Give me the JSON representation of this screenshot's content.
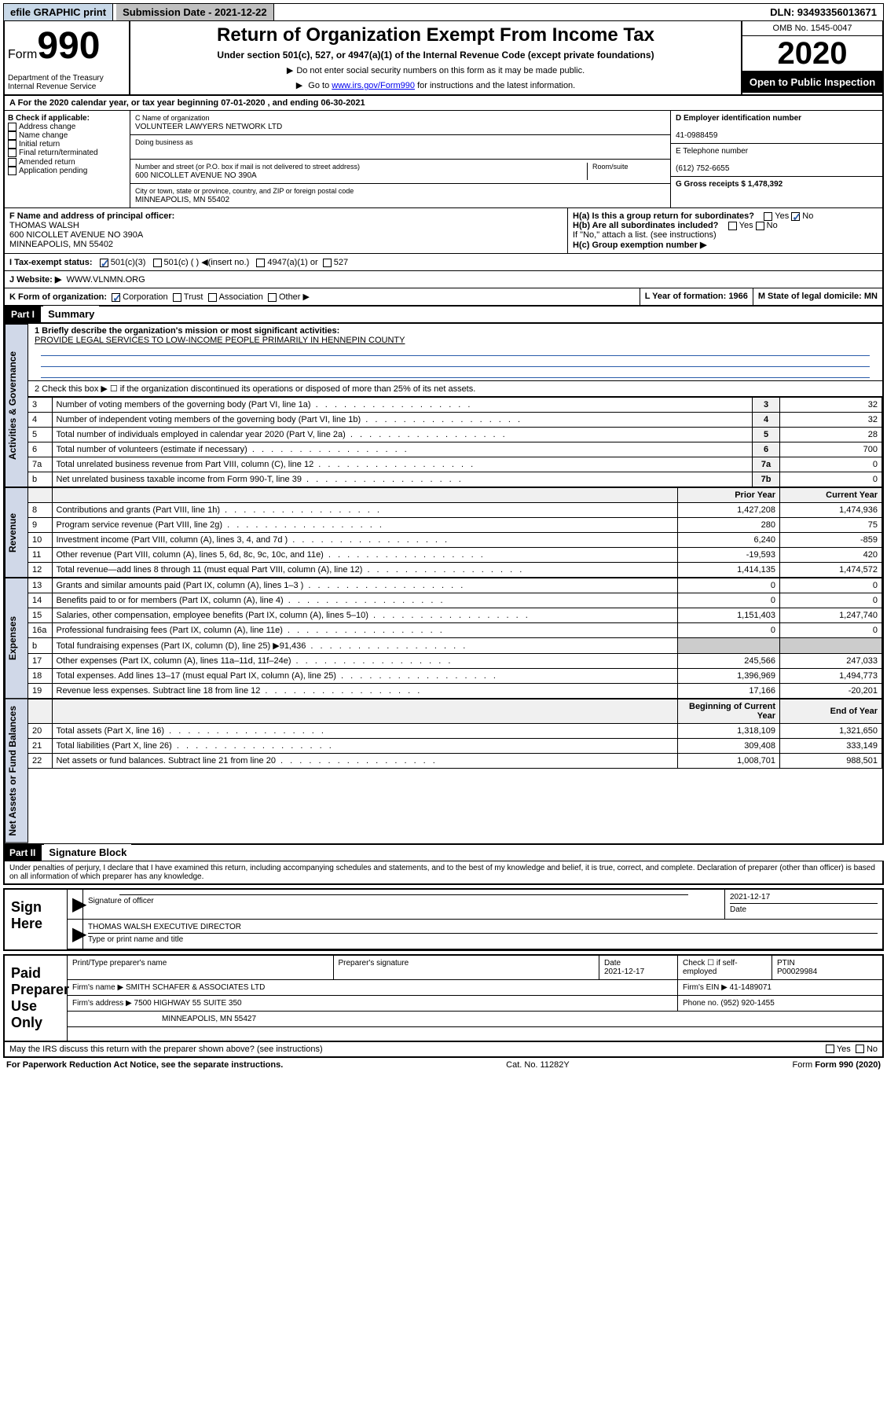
{
  "top_bar": {
    "efile": "efile GRAPHIC print",
    "submission": "Submission Date - 2021-12-22",
    "dln": "DLN: 93493356013671"
  },
  "header": {
    "form_label": "Form",
    "form_num": "990",
    "dept": "Department of the Treasury\nInternal Revenue Service",
    "title": "Return of Organization Exempt From Income Tax",
    "subtitle": "Under section 501(c), 527, or 4947(a)(1) of the Internal Revenue Code (except private foundations)",
    "note1": "Do not enter social security numbers on this form as it may be made public.",
    "note2_pre": "Go to ",
    "note2_link": "www.irs.gov/Form990",
    "note2_post": " for instructions and the latest information.",
    "omb": "OMB No. 1545-0047",
    "year": "2020",
    "open": "Open to Public Inspection"
  },
  "line_a": "A For the 2020 calendar year, or tax year beginning 07-01-2020   , and ending 06-30-2021",
  "col_b": {
    "label": "B Check if applicable:",
    "items": [
      "Address change",
      "Name change",
      "Initial return",
      "Final return/terminated",
      "Amended return",
      "Application pending"
    ]
  },
  "col_c": {
    "name_label": "C Name of organization",
    "name": "VOLUNTEER LAWYERS NETWORK LTD",
    "dba_label": "Doing business as",
    "street_label": "Number and street (or P.O. box if mail is not delivered to street address)",
    "room_label": "Room/suite",
    "street": "600 NICOLLET AVENUE NO 390A",
    "city_label": "City or town, state or province, country, and ZIP or foreign postal code",
    "city": "MINNEAPOLIS, MN  55402"
  },
  "col_d": {
    "ein_label": "D Employer identification number",
    "ein": "41-0988459",
    "phone_label": "E Telephone number",
    "phone": "(612) 752-6655",
    "gross_label": "G Gross receipts $ 1,478,392"
  },
  "row_f": {
    "label": "F  Name and address of principal officer:",
    "name": "THOMAS WALSH",
    "addr1": "600 NICOLLET AVENUE NO 390A",
    "addr2": "MINNEAPOLIS, MN  55402"
  },
  "row_h": {
    "ha": "H(a)  Is this a group return for subordinates?",
    "hb": "H(b)  Are all subordinates included?",
    "hb_note": "If \"No,\" attach a list. (see instructions)",
    "hc": "H(c)  Group exemption number ▶"
  },
  "row_i": {
    "label": "I  Tax-exempt status:",
    "opts": [
      "501(c)(3)",
      "501(c) (  ) ◀(insert no.)",
      "4947(a)(1) or",
      "527"
    ]
  },
  "row_j": {
    "label": "J  Website: ▶",
    "val": "WWW.VLNMN.ORG"
  },
  "row_k": {
    "label": "K Form of organization:",
    "opts": [
      "Corporation",
      "Trust",
      "Association",
      "Other ▶"
    ],
    "l": "L Year of formation: 1966",
    "m": "M State of legal domicile: MN"
  },
  "part1": {
    "tag": "Part I",
    "title": "Summary",
    "q1": "1  Briefly describe the organization's mission or most significant activities:",
    "q1_ans": "PROVIDE LEGAL SERVICES TO LOW-INCOME PEOPLE PRIMARILY IN HENNEPIN COUNTY",
    "q2": "2   Check this box ▶ ☐  if the organization discontinued its operations or disposed of more than 25% of its net assets."
  },
  "gov_rows": [
    {
      "n": "3",
      "desc": "Number of voting members of the governing body (Part VI, line 1a)",
      "box": "3",
      "val": "32"
    },
    {
      "n": "4",
      "desc": "Number of independent voting members of the governing body (Part VI, line 1b)",
      "box": "4",
      "val": "32"
    },
    {
      "n": "5",
      "desc": "Total number of individuals employed in calendar year 2020 (Part V, line 2a)",
      "box": "5",
      "val": "28"
    },
    {
      "n": "6",
      "desc": "Total number of volunteers (estimate if necessary)",
      "box": "6",
      "val": "700"
    },
    {
      "n": "7a",
      "desc": "Total unrelated business revenue from Part VIII, column (C), line 12",
      "box": "7a",
      "val": "0"
    },
    {
      "n": "b",
      "desc": "Net unrelated business taxable income from Form 990-T, line 39",
      "box": "7b",
      "val": "0"
    }
  ],
  "rev_head": {
    "prior": "Prior Year",
    "current": "Current Year"
  },
  "rev_rows": [
    {
      "n": "8",
      "desc": "Contributions and grants (Part VIII, line 1h)",
      "p": "1,427,208",
      "c": "1,474,936"
    },
    {
      "n": "9",
      "desc": "Program service revenue (Part VIII, line 2g)",
      "p": "280",
      "c": "75"
    },
    {
      "n": "10",
      "desc": "Investment income (Part VIII, column (A), lines 3, 4, and 7d )",
      "p": "6,240",
      "c": "-859"
    },
    {
      "n": "11",
      "desc": "Other revenue (Part VIII, column (A), lines 5, 6d, 8c, 9c, 10c, and 11e)",
      "p": "-19,593",
      "c": "420"
    },
    {
      "n": "12",
      "desc": "Total revenue—add lines 8 through 11 (must equal Part VIII, column (A), line 12)",
      "p": "1,414,135",
      "c": "1,474,572"
    }
  ],
  "exp_rows": [
    {
      "n": "13",
      "desc": "Grants and similar amounts paid (Part IX, column (A), lines 1–3 )",
      "p": "0",
      "c": "0"
    },
    {
      "n": "14",
      "desc": "Benefits paid to or for members (Part IX, column (A), line 4)",
      "p": "0",
      "c": "0"
    },
    {
      "n": "15",
      "desc": "Salaries, other compensation, employee benefits (Part IX, column (A), lines 5–10)",
      "p": "1,151,403",
      "c": "1,247,740"
    },
    {
      "n": "16a",
      "desc": "Professional fundraising fees (Part IX, column (A), line 11e)",
      "p": "0",
      "c": "0"
    },
    {
      "n": "b",
      "desc": "Total fundraising expenses (Part IX, column (D), line 25) ▶91,436",
      "p": "",
      "c": ""
    },
    {
      "n": "17",
      "desc": "Other expenses (Part IX, column (A), lines 11a–11d, 11f–24e)",
      "p": "245,566",
      "c": "247,033"
    },
    {
      "n": "18",
      "desc": "Total expenses. Add lines 13–17 (must equal Part IX, column (A), line 25)",
      "p": "1,396,969",
      "c": "1,494,773"
    },
    {
      "n": "19",
      "desc": "Revenue less expenses. Subtract line 18 from line 12",
      "p": "17,166",
      "c": "-20,201"
    }
  ],
  "net_head": {
    "begin": "Beginning of Current Year",
    "end": "End of Year"
  },
  "net_rows": [
    {
      "n": "20",
      "desc": "Total assets (Part X, line 16)",
      "p": "1,318,109",
      "c": "1,321,650"
    },
    {
      "n": "21",
      "desc": "Total liabilities (Part X, line 26)",
      "p": "309,408",
      "c": "333,149"
    },
    {
      "n": "22",
      "desc": "Net assets or fund balances. Subtract line 21 from line 20",
      "p": "1,008,701",
      "c": "988,501"
    }
  ],
  "part2": {
    "tag": "Part II",
    "title": "Signature Block"
  },
  "sig_decl": "Under penalties of perjury, I declare that I have examined this return, including accompanying schedules and statements, and to the best of my knowledge and belief, it is true, correct, and complete. Declaration of preparer (other than officer) is based on all information of which preparer has any knowledge.",
  "sign_here": {
    "label": "Sign Here",
    "sig_of": "Signature of officer",
    "date": "2021-12-17",
    "date_lbl": "Date",
    "name": "THOMAS WALSH  EXECUTIVE DIRECTOR",
    "name_lbl": "Type or print name and title"
  },
  "paid": {
    "label": "Paid Preparer Use Only",
    "r1": {
      "c1": "Print/Type preparer's name",
      "c2": "Preparer's signature",
      "c3": "Date\n2021-12-17",
      "c4": "Check ☐  if self-employed",
      "c5": "PTIN\nP00029984"
    },
    "r2": {
      "c1": "Firm's name    ▶ SMITH SCHAFER & ASSOCIATES LTD",
      "c2": "Firm's EIN ▶ 41-1489071"
    },
    "r3": {
      "c1": "Firm's address ▶ 7500 HIGHWAY 55 SUITE 350",
      "c2": "Phone no. (952) 920-1455"
    },
    "r4": "MINNEAPOLIS, MN  55427"
  },
  "discuss": "May the IRS discuss this return with the preparer shown above? (see instructions)",
  "footer": {
    "l": "For Paperwork Reduction Act Notice, see the separate instructions.",
    "m": "Cat. No. 11282Y",
    "r": "Form 990 (2020)"
  },
  "side_labels": {
    "gov": "Activities & Governance",
    "rev": "Revenue",
    "exp": "Expenses",
    "net": "Net Assets or Fund Balances"
  },
  "yes": "Yes",
  "no": "No"
}
